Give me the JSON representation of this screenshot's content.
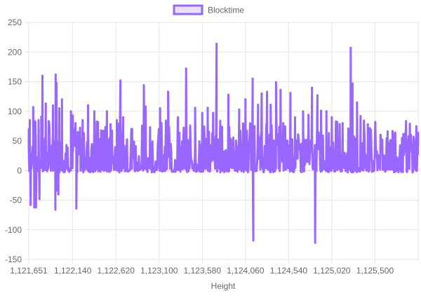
{
  "chart_data": {
    "type": "line",
    "title": "",
    "xlabel": "Height",
    "ylabel": "",
    "legend": {
      "position": "top",
      "entries": [
        "Blocktime"
      ]
    },
    "grid": true,
    "xlim": [
      1121651,
      1125980
    ],
    "ylim": [
      -150,
      250
    ],
    "y_ticks": [
      -150,
      -100,
      -50,
      0,
      50,
      100,
      150,
      200,
      250
    ],
    "x_ticks": [
      "1,121,651",
      "1,122,140",
      "1,122,620",
      "1,123,100",
      "1,123,580",
      "1,124,060",
      "1,124,540",
      "1,125,020",
      "1,125,500"
    ],
    "x_tick_values": [
      1121651,
      1122140,
      1122620,
      1123100,
      1123580,
      1124060,
      1124540,
      1125020,
      1125500
    ],
    "series": [
      {
        "name": "Blocktime",
        "color": "#9966ff",
        "values_note_free": true,
        "points": [
          [
            1121651,
            70
          ],
          [
            1121663,
            85
          ],
          [
            1121671,
            -58
          ],
          [
            1121690,
            40
          ],
          [
            1121700,
            107
          ],
          [
            1121712,
            -62
          ],
          [
            1121725,
            82
          ],
          [
            1121731,
            -62
          ],
          [
            1121760,
            85
          ],
          [
            1121770,
            -48
          ],
          [
            1121790,
            91
          ],
          [
            1121803,
            160
          ],
          [
            1121840,
            113
          ],
          [
            1121880,
            70
          ],
          [
            1121920,
            110
          ],
          [
            1121947,
            -66
          ],
          [
            1121950,
            162
          ],
          [
            1121960,
            148
          ],
          [
            1121970,
            -34
          ],
          [
            1121980,
            -40
          ],
          [
            1121990,
            105
          ],
          [
            1122020,
            120
          ],
          [
            1122120,
            100
          ],
          [
            1122140,
            93
          ],
          [
            1122170,
            80
          ],
          [
            1122180,
            -64
          ],
          [
            1122250,
            85
          ],
          [
            1122310,
            110
          ],
          [
            1122380,
            100
          ],
          [
            1122420,
            82
          ],
          [
            1122520,
            100
          ],
          [
            1122560,
            78
          ],
          [
            1122630,
            85
          ],
          [
            1122670,
            152
          ],
          [
            1122700,
            90
          ],
          [
            1122800,
            70
          ],
          [
            1122930,
            144
          ],
          [
            1122950,
            108
          ],
          [
            1123000,
            73
          ],
          [
            1123110,
            105
          ],
          [
            1123200,
            133
          ],
          [
            1123310,
            90
          ],
          [
            1123400,
            172
          ],
          [
            1123500,
            106
          ],
          [
            1123580,
            97
          ],
          [
            1123640,
            106
          ],
          [
            1123700,
            97
          ],
          [
            1123739,
            214
          ],
          [
            1123780,
            84
          ],
          [
            1123870,
            128
          ],
          [
            1123880,
            73
          ],
          [
            1123990,
            103
          ],
          [
            1124060,
            120
          ],
          [
            1124140,
            155
          ],
          [
            1124147,
            -118
          ],
          [
            1124160,
            75
          ],
          [
            1124200,
            111
          ],
          [
            1124240,
            130
          ],
          [
            1124300,
            133
          ],
          [
            1124340,
            111
          ],
          [
            1124400,
            149
          ],
          [
            1124450,
            136
          ],
          [
            1124480,
            80
          ],
          [
            1124560,
            131
          ],
          [
            1124610,
            90
          ],
          [
            1124700,
            100
          ],
          [
            1124760,
            94
          ],
          [
            1124800,
            140
          ],
          [
            1124834,
            -122
          ],
          [
            1124860,
            127
          ],
          [
            1124900,
            101
          ],
          [
            1124960,
            100
          ],
          [
            1125020,
            90
          ],
          [
            1125080,
            82
          ],
          [
            1125140,
            80
          ],
          [
            1125230,
            207
          ],
          [
            1125250,
            147
          ],
          [
            1125300,
            115
          ],
          [
            1125340,
            92
          ],
          [
            1125420,
            78
          ],
          [
            1125500,
            65
          ],
          [
            1125560,
            60
          ],
          [
            1125640,
            66
          ],
          [
            1125700,
            62
          ],
          [
            1125800,
            55
          ],
          [
            1125900,
            60
          ],
          [
            1125980,
            64
          ]
        ]
      }
    ]
  }
}
